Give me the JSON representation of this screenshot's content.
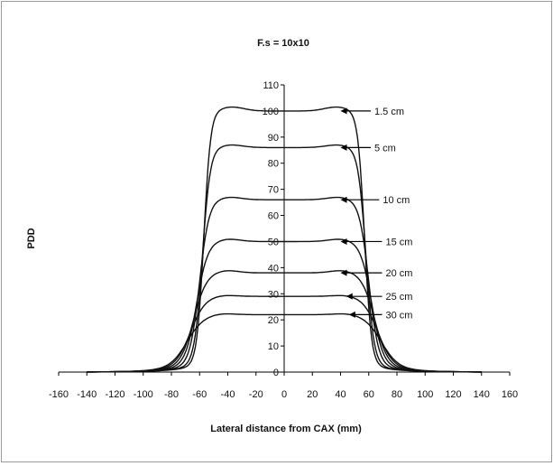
{
  "chart_data": {
    "type": "line",
    "title": "F.s = 10x10",
    "xlabel": "Lateral distance from CAX (mm)",
    "ylabel": "PDD",
    "xlim": [
      -160,
      160
    ],
    "ylim": [
      0,
      110
    ],
    "x_ticks": [
      "-160",
      "-140",
      "-120",
      "-100",
      "-80",
      "-60",
      "-40",
      "-20",
      "0",
      "20",
      "40",
      "60",
      "80",
      "100",
      "120",
      "140",
      "160"
    ],
    "y_ticks": [
      "0",
      "10",
      "20",
      "30",
      "40",
      "50",
      "60",
      "70",
      "80",
      "90",
      "100",
      "110"
    ],
    "grid": false,
    "legend": "none",
    "series": [
      {
        "name": "1.5 cm",
        "depth_cm": 1.5,
        "plateau": 100,
        "peak": 101.5,
        "half_width": 57,
        "arrow_x": 40,
        "label_x": 64
      },
      {
        "name": "5 cm",
        "depth_cm": 5,
        "plateau": 86,
        "peak": 87,
        "half_width": 58,
        "arrow_x": 40,
        "label_x": 64
      },
      {
        "name": "10 cm",
        "depth_cm": 10,
        "plateau": 66,
        "peak": 67,
        "half_width": 60,
        "arrow_x": 40,
        "label_x": 70
      },
      {
        "name": "15 cm",
        "depth_cm": 15,
        "plateau": 50,
        "peak": 51,
        "half_width": 62,
        "arrow_x": 40,
        "label_x": 72
      },
      {
        "name": "20 cm",
        "depth_cm": 20,
        "plateau": 38,
        "peak": 39,
        "half_width": 64,
        "arrow_x": 40,
        "label_x": 72
      },
      {
        "name": "25 cm",
        "depth_cm": 25,
        "plateau": 29,
        "peak": 29.5,
        "half_width": 66,
        "arrow_x": 44,
        "label_x": 72
      },
      {
        "name": "30 cm",
        "depth_cm": 30,
        "plateau": 22,
        "peak": 22.5,
        "half_width": 68,
        "arrow_x": 46,
        "label_x": 72
      }
    ]
  }
}
